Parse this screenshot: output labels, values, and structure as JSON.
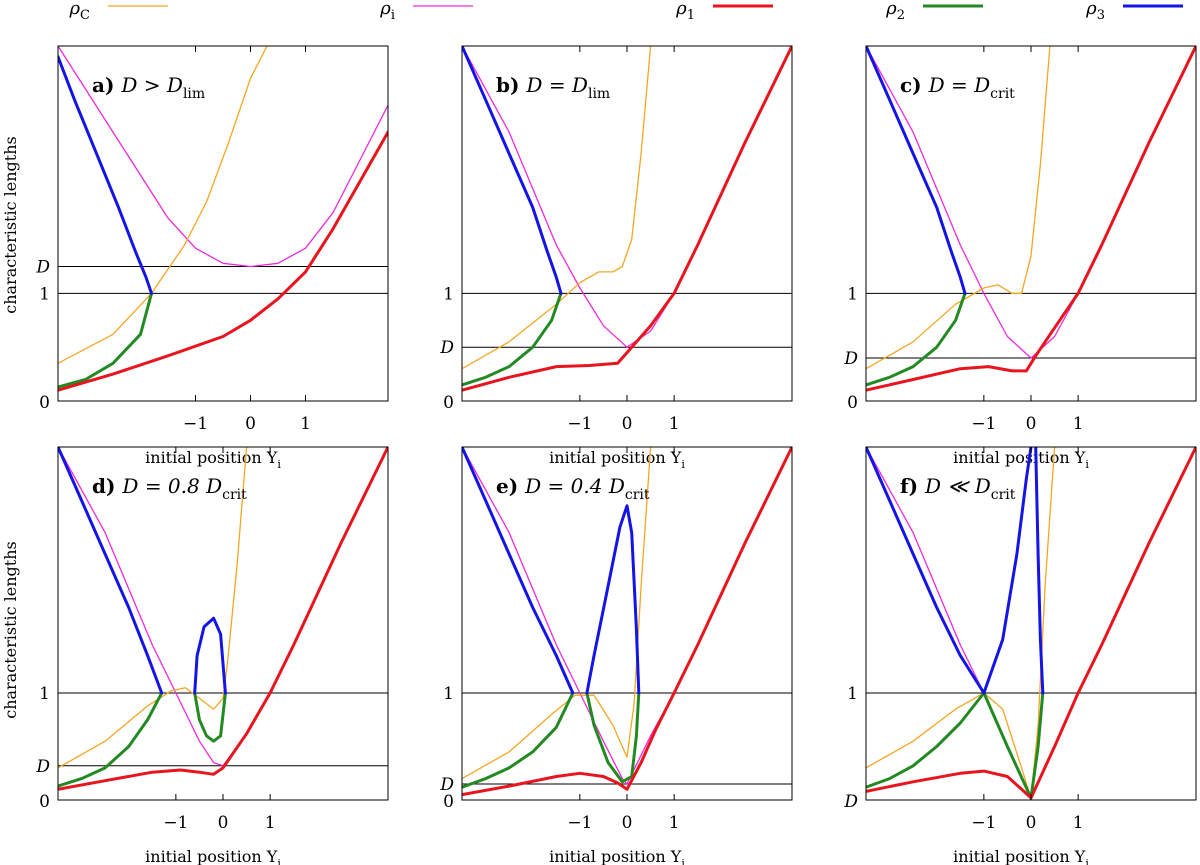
{
  "legend": [
    {
      "key": "rhoC",
      "label": "ρ",
      "sub": "C",
      "color": "#f5a623"
    },
    {
      "key": "rhoi",
      "label": "ρ",
      "sub": "i",
      "color": "#ee2ad9"
    },
    {
      "key": "rho1",
      "label": "ρ",
      "sub": "1",
      "color": "#e8141e"
    },
    {
      "key": "rho2",
      "label": "ρ",
      "sub": "2",
      "color": "#238a23"
    },
    {
      "key": "rho3",
      "label": "ρ",
      "sub": "3",
      "color": "#1414e6"
    }
  ],
  "colors": {
    "rhoC": "#f5a623",
    "rhoi": "#ee2ad9",
    "rho1": "#e8141e",
    "rho2": "#238a23",
    "rho3": "#1414e6"
  },
  "ylabel": "characteristic lengths",
  "xlabel": "initial position Y",
  "xlabel_sub": "i",
  "chart_data": [
    {
      "type": "line",
      "letter": "a)",
      "title_pre": "D > D",
      "title_sub": "lim",
      "xlim": [
        -3.5,
        2.5
      ],
      "ylim": [
        0,
        3.3
      ],
      "xticks": [
        "-1",
        "0",
        "1"
      ],
      "xtick_values": [
        -1,
        0,
        1
      ],
      "hlines": [
        {
          "value": 1.0,
          "label": "1"
        },
        {
          "value": 1.25,
          "label": "D"
        }
      ],
      "zero_label": "0",
      "series": [
        {
          "key": "rhoi",
          "x": [
            -3.5,
            -2.5,
            -1.5,
            -1.0,
            -0.5,
            0,
            0.5,
            1.0,
            1.5,
            2.0,
            2.5
          ],
          "y": [
            3.3,
            2.5,
            1.7,
            1.42,
            1.28,
            1.25,
            1.28,
            1.42,
            1.75,
            2.25,
            2.75
          ]
        },
        {
          "key": "rhoC",
          "x": [
            -3.5,
            -2.5,
            -1.8,
            -1.2,
            -0.8,
            -0.4,
            0,
            0.3
          ],
          "y": [
            0.35,
            0.62,
            1.0,
            1.45,
            1.85,
            2.4,
            3.0,
            3.3
          ]
        },
        {
          "key": "rho1",
          "x": [
            -3.5,
            -2.5,
            -1.5,
            -0.5,
            0,
            0.5,
            1.0,
            1.5,
            2.0,
            2.5
          ],
          "y": [
            0.1,
            0.25,
            0.42,
            0.6,
            0.75,
            0.95,
            1.2,
            1.6,
            2.05,
            2.5
          ]
        },
        {
          "key": "rho2",
          "x": [
            -3.5,
            -3.0,
            -2.5,
            -2.0,
            -1.8
          ],
          "y": [
            0.13,
            0.2,
            0.35,
            0.62,
            1.0
          ]
        },
        {
          "key": "rho3",
          "x": [
            -3.5,
            -3.2,
            -2.8,
            -2.4,
            -2.1,
            -1.9,
            -1.8
          ],
          "y": [
            3.2,
            2.8,
            2.3,
            1.8,
            1.4,
            1.15,
            1.0
          ]
        }
      ]
    },
    {
      "type": "line",
      "letter": "b)",
      "title_pre": "D = D",
      "title_sub": "lim",
      "xlim": [
        -3.5,
        3.5
      ],
      "ylim": [
        0,
        3.3
      ],
      "xticks": [
        "-1",
        "0",
        "1"
      ],
      "xtick_values": [
        -1,
        0,
        1
      ],
      "hlines": [
        {
          "value": 1.0,
          "label": "1"
        },
        {
          "value": 0.5,
          "label": "D"
        }
      ],
      "zero_label": "0",
      "series": [
        {
          "key": "rhoi",
          "x": [
            -3.5,
            -2.5,
            -1.5,
            -1.0,
            -0.5,
            0,
            0.5,
            1.0,
            1.5,
            2.5,
            3.5
          ],
          "y": [
            3.3,
            2.5,
            1.45,
            1.05,
            0.7,
            0.5,
            0.65,
            1.0,
            1.45,
            2.4,
            3.3
          ]
        },
        {
          "key": "rhoC",
          "x": [
            -3.5,
            -2.5,
            -1.5,
            -1.0,
            -0.6,
            -0.3,
            -0.1,
            0.1,
            0.3,
            0.5
          ],
          "y": [
            0.3,
            0.55,
            0.9,
            1.1,
            1.2,
            1.2,
            1.25,
            1.5,
            2.3,
            3.3
          ]
        },
        {
          "key": "rho1",
          "x": [
            -3.5,
            -2.5,
            -1.5,
            -0.8,
            -0.2,
            0,
            0.5,
            1.0,
            1.5,
            2.5,
            3.5
          ],
          "y": [
            0.1,
            0.22,
            0.32,
            0.33,
            0.35,
            0.45,
            0.7,
            1.0,
            1.45,
            2.4,
            3.3
          ]
        },
        {
          "key": "rho2",
          "x": [
            -3.5,
            -3.0,
            -2.5,
            -2.0,
            -1.6,
            -1.4
          ],
          "y": [
            0.15,
            0.22,
            0.32,
            0.5,
            0.75,
            1.0
          ]
        },
        {
          "key": "rho3",
          "x": [
            -3.5,
            -3.0,
            -2.5,
            -2.0,
            -1.7,
            -1.5,
            -1.4
          ],
          "y": [
            3.3,
            2.8,
            2.3,
            1.8,
            1.4,
            1.15,
            1.0
          ]
        }
      ]
    },
    {
      "type": "line",
      "letter": "c)",
      "title_pre": "D = D",
      "title_sub": "crit",
      "xlim": [
        -3.5,
        3.5
      ],
      "ylim": [
        0,
        3.3
      ],
      "xticks": [
        "-1",
        "0",
        "1"
      ],
      "xtick_values": [
        -1,
        0,
        1
      ],
      "hlines": [
        {
          "value": 1.0,
          "label": "1"
        },
        {
          "value": 0.4,
          "label": "D"
        }
      ],
      "zero_label": "0",
      "series": [
        {
          "key": "rhoi",
          "x": [
            -3.5,
            -2.5,
            -1.5,
            -1.0,
            -0.5,
            0,
            0.5,
            1.0,
            1.5,
            2.5,
            3.5
          ],
          "y": [
            3.3,
            2.5,
            1.45,
            1.0,
            0.6,
            0.4,
            0.6,
            1.0,
            1.45,
            2.4,
            3.3
          ]
        },
        {
          "key": "rhoC",
          "x": [
            -3.5,
            -2.5,
            -1.6,
            -1.0,
            -0.7,
            -0.4,
            -0.2,
            0,
            0.2,
            0.4
          ],
          "y": [
            0.3,
            0.55,
            0.9,
            1.05,
            1.08,
            1.0,
            1.0,
            1.35,
            2.2,
            3.3
          ]
        },
        {
          "key": "rho1",
          "x": [
            -3.5,
            -2.5,
            -1.5,
            -0.9,
            -0.4,
            -0.1,
            0.1,
            0.5,
            1.0,
            1.5,
            2.5,
            3.5
          ],
          "y": [
            0.1,
            0.2,
            0.3,
            0.32,
            0.28,
            0.28,
            0.42,
            0.68,
            1.0,
            1.45,
            2.4,
            3.3
          ]
        },
        {
          "key": "rho2",
          "x": [
            -3.5,
            -3.0,
            -2.5,
            -2.0,
            -1.6,
            -1.4
          ],
          "y": [
            0.15,
            0.22,
            0.32,
            0.5,
            0.75,
            1.0
          ]
        },
        {
          "key": "rho3",
          "x": [
            -3.5,
            -3.0,
            -2.5,
            -2.0,
            -1.7,
            -1.5,
            -1.4
          ],
          "y": [
            3.3,
            2.8,
            2.3,
            1.8,
            1.4,
            1.15,
            1.0
          ]
        }
      ]
    },
    {
      "type": "line",
      "letter": "d)",
      "title_pre": "D = 0.8 D",
      "title_sub": "crit",
      "xlim": [
        -3.5,
        3.5
      ],
      "ylim": [
        0,
        3.3
      ],
      "xticks": [
        "-1",
        "0",
        "1"
      ],
      "xtick_values": [
        -1,
        0,
        1
      ],
      "hlines": [
        {
          "value": 1.0,
          "label": "1"
        },
        {
          "value": 0.32,
          "label": "D"
        }
      ],
      "zero_label": "0",
      "series": [
        {
          "key": "rhoi",
          "x": [
            -3.5,
            -2.5,
            -1.5,
            -1.0,
            -0.5,
            -0.2,
            0,
            0.5,
            1.0,
            1.5,
            2.5,
            3.5
          ],
          "y": [
            3.3,
            2.5,
            1.45,
            1.0,
            0.55,
            0.35,
            0.32,
            0.62,
            1.0,
            1.45,
            2.4,
            3.3
          ]
        },
        {
          "key": "rhoC",
          "x": [
            -3.5,
            -2.5,
            -1.6,
            -1.1,
            -0.8,
            -0.5,
            -0.2,
            0,
            0.1,
            0.3,
            0.5
          ],
          "y": [
            0.3,
            0.55,
            0.88,
            1.02,
            1.05,
            0.95,
            0.85,
            0.95,
            1.3,
            2.2,
            3.3
          ]
        },
        {
          "key": "rho1",
          "x": [
            -3.5,
            -2.5,
            -1.5,
            -0.9,
            -0.5,
            -0.2,
            0,
            0.5,
            1.0,
            1.5,
            2.5,
            3.5
          ],
          "y": [
            0.1,
            0.18,
            0.26,
            0.28,
            0.26,
            0.24,
            0.3,
            0.62,
            1.0,
            1.45,
            2.4,
            3.3
          ]
        },
        {
          "key": "rho2",
          "x": [
            -3.5,
            -3.0,
            -2.5,
            -2.0,
            -1.6,
            -1.3
          ],
          "y": [
            0.13,
            0.2,
            0.3,
            0.5,
            0.75,
            1.0
          ]
        },
        {
          "key": "rho3",
          "x": [
            -3.5,
            -3.0,
            -2.5,
            -2.0,
            -1.6,
            -1.3
          ],
          "y": [
            3.3,
            2.8,
            2.3,
            1.8,
            1.35,
            1.0
          ]
        },
        {
          "key": "rho2",
          "x": [
            -0.6,
            -0.5,
            -0.35,
            -0.2,
            -0.05,
            0.05
          ],
          "y": [
            1.0,
            0.75,
            0.6,
            0.55,
            0.6,
            1.0
          ]
        },
        {
          "key": "rho3",
          "x": [
            -0.6,
            -0.55,
            -0.4,
            -0.2,
            -0.05,
            0.05
          ],
          "y": [
            1.0,
            1.35,
            1.62,
            1.7,
            1.55,
            1.0
          ]
        }
      ]
    },
    {
      "type": "line",
      "letter": "e)",
      "title_pre": "D = 0.4 D",
      "title_sub": "crit",
      "xlim": [
        -3.5,
        3.5
      ],
      "ylim": [
        0,
        3.3
      ],
      "xticks": [
        "-1",
        "0",
        "1"
      ],
      "xtick_values": [
        -1,
        0,
        1
      ],
      "hlines": [
        {
          "value": 1.0,
          "label": "1"
        },
        {
          "value": 0.15,
          "label": "D"
        }
      ],
      "zero_label": "0",
      "series": [
        {
          "key": "rhoi",
          "x": [
            -3.5,
            -2.5,
            -1.5,
            -1.0,
            -0.5,
            -0.1,
            0,
            0.5,
            1.0,
            1.5,
            2.5,
            3.5
          ],
          "y": [
            3.3,
            2.5,
            1.45,
            1.0,
            0.55,
            0.2,
            0.15,
            0.6,
            1.0,
            1.45,
            2.4,
            3.3
          ]
        },
        {
          "key": "rhoC",
          "x": [
            -3.5,
            -2.5,
            -1.6,
            -1.1,
            -0.7,
            -0.3,
            0,
            0.15,
            0.3,
            0.5
          ],
          "y": [
            0.2,
            0.45,
            0.8,
            0.98,
            0.98,
            0.7,
            0.4,
            0.9,
            2.0,
            3.3
          ]
        },
        {
          "key": "rho1",
          "x": [
            -3.5,
            -2.5,
            -1.5,
            -1.0,
            -0.5,
            -0.2,
            0,
            0.3,
            0.6,
            1.0,
            1.5,
            2.5,
            3.5
          ],
          "y": [
            0.05,
            0.13,
            0.22,
            0.25,
            0.22,
            0.16,
            0.1,
            0.35,
            0.65,
            1.0,
            1.45,
            2.4,
            3.3
          ]
        },
        {
          "key": "rho2",
          "x": [
            -3.5,
            -3.0,
            -2.5,
            -2.0,
            -1.5,
            -1.15
          ],
          "y": [
            0.12,
            0.2,
            0.3,
            0.45,
            0.68,
            1.0
          ]
        },
        {
          "key": "rho3",
          "x": [
            -3.5,
            -3.0,
            -2.5,
            -2.0,
            -1.5,
            -1.15
          ],
          "y": [
            3.3,
            2.8,
            2.3,
            1.8,
            1.35,
            1.0
          ]
        },
        {
          "key": "rho2",
          "x": [
            -0.85,
            -0.7,
            -0.4,
            -0.1,
            0.1,
            0.2,
            0.25
          ],
          "y": [
            1.0,
            0.7,
            0.35,
            0.17,
            0.22,
            0.6,
            1.0
          ]
        },
        {
          "key": "rho3",
          "x": [
            -0.85,
            -0.7,
            -0.4,
            -0.15,
            0,
            0.1,
            0.2,
            0.25
          ],
          "y": [
            1.0,
            1.35,
            2.0,
            2.55,
            2.75,
            2.5,
            1.6,
            1.0
          ]
        }
      ]
    },
    {
      "type": "line",
      "letter": "f)",
      "title_pre": "D ≪ D",
      "title_sub": "crit",
      "xlim": [
        -3.5,
        3.5
      ],
      "ylim": [
        0,
        3.3
      ],
      "xticks": [
        "-1",
        "0",
        "1"
      ],
      "xtick_values": [
        -1,
        0,
        1
      ],
      "hlines": [
        {
          "value": 1.0,
          "label": "1"
        }
      ],
      "zero_label": "D",
      "series": [
        {
          "key": "rhoi",
          "x": [
            -3.5,
            -2.5,
            -1.5,
            -1.0,
            -0.5,
            0,
            0.5,
            1.0,
            1.5,
            2.5,
            3.5
          ],
          "y": [
            3.3,
            2.5,
            1.45,
            1.0,
            0.5,
            0.02,
            0.5,
            1.0,
            1.45,
            2.4,
            3.3
          ]
        },
        {
          "key": "rhoC",
          "x": [
            -3.5,
            -2.5,
            -1.6,
            -1.0,
            -0.6,
            -0.2,
            0,
            0.15,
            0.3,
            0.5
          ],
          "y": [
            0.3,
            0.55,
            0.85,
            1.0,
            0.85,
            0.3,
            0.02,
            0.7,
            2.0,
            3.3
          ]
        },
        {
          "key": "rho1",
          "x": [
            -3.5,
            -2.5,
            -1.5,
            -1.0,
            -0.5,
            -0.2,
            0,
            0.5,
            1.0,
            1.5,
            2.5,
            3.5
          ],
          "y": [
            0.08,
            0.17,
            0.25,
            0.27,
            0.22,
            0.1,
            0.02,
            0.5,
            1.0,
            1.45,
            2.4,
            3.3
          ]
        },
        {
          "key": "rho2",
          "x": [
            -3.5,
            -3.0,
            -2.5,
            -2.0,
            -1.5,
            -1.0
          ],
          "y": [
            0.12,
            0.2,
            0.32,
            0.5,
            0.72,
            1.0
          ]
        },
        {
          "key": "rho3",
          "x": [
            -3.5,
            -3.0,
            -2.5,
            -2.0,
            -1.5,
            -1.0
          ],
          "y": [
            3.3,
            2.8,
            2.3,
            1.8,
            1.35,
            1.0
          ]
        },
        {
          "key": "rho2",
          "x": [
            -1.0,
            -0.5,
            0,
            0.15,
            0.25
          ],
          "y": [
            1.0,
            0.5,
            0.02,
            0.5,
            1.0
          ]
        },
        {
          "key": "rho3",
          "x": [
            -1.0,
            -0.6,
            -0.3,
            -0.1,
            0.0
          ],
          "y": [
            1.0,
            1.5,
            2.3,
            3.0,
            3.3
          ]
        },
        {
          "key": "rho3",
          "x": [
            0.1,
            0.15,
            0.2,
            0.25
          ],
          "y": [
            3.3,
            2.3,
            1.5,
            1.0
          ]
        }
      ]
    }
  ]
}
